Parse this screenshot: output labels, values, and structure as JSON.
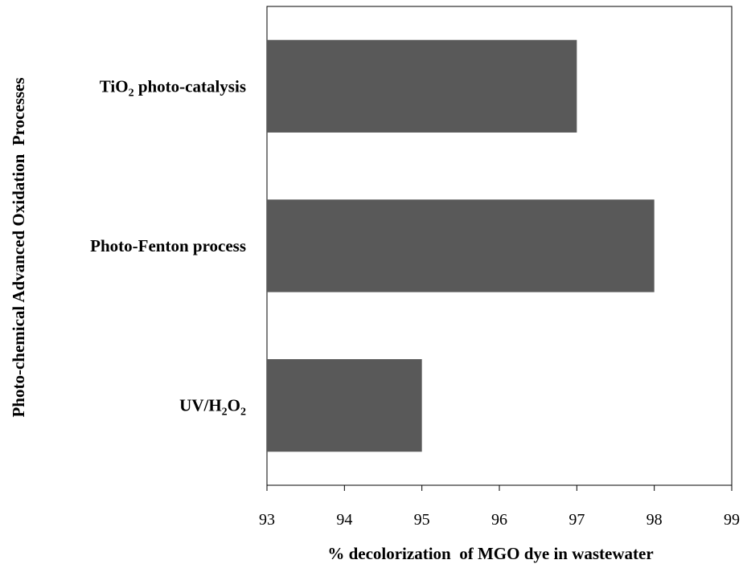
{
  "chart_data": {
    "type": "bar",
    "orientation": "horizontal",
    "categories": [
      "TiO2 photo-catalysis",
      "Photo-Fenton process",
      "UV/H2O2"
    ],
    "category_labels": [
      [
        {
          "t": "TiO"
        },
        {
          "t": "2",
          "sub": true
        },
        {
          "t": " photo-catalysis"
        }
      ],
      [
        {
          "t": "Photo-Fenton process"
        }
      ],
      [
        {
          "t": "UV/H"
        },
        {
          "t": "2",
          "sub": true
        },
        {
          "t": "O"
        },
        {
          "t": "2",
          "sub": true
        }
      ]
    ],
    "values": [
      97,
      98,
      95
    ],
    "xlabel": "% decolorization  of MGO dye in wastewater",
    "ylabel": "Photo-chemical Advanced Oxidation  Processes",
    "xlim": [
      93,
      99
    ],
    "xticks": [
      93,
      94,
      95,
      96,
      97,
      98,
      99
    ],
    "bar_color": "#595959",
    "grid": false,
    "legend": "none"
  }
}
